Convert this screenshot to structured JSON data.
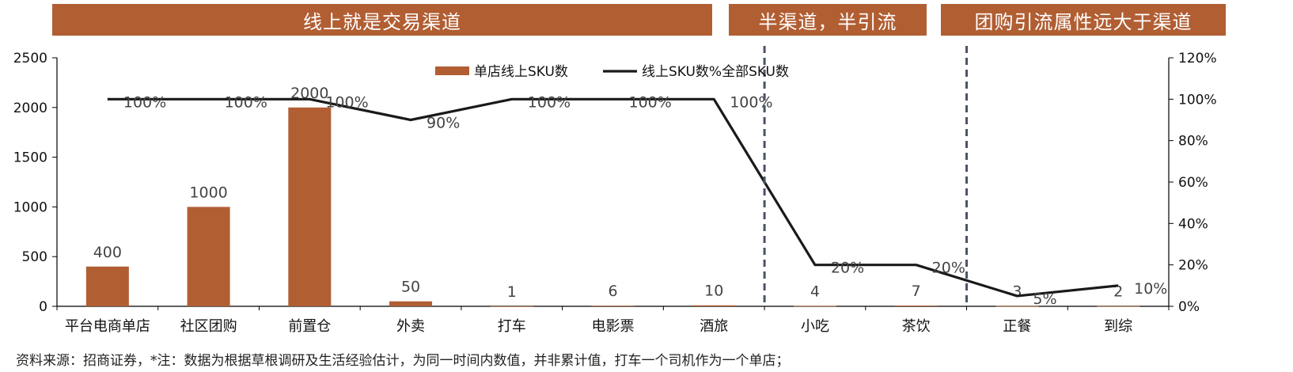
{
  "banners": [
    {
      "text": "线上就是交易渠道"
    },
    {
      "text": "半渠道，半引流"
    },
    {
      "text": "团购引流属性远大于渠道"
    }
  ],
  "footnote": "资料来源：招商证券，*注：数据为根据草根调研及生活经验估计，为同一时间内数值，并非累计值，打车一个司机作为一个单店；",
  "colors": {
    "bar": "#B15E33",
    "line": "#1a1a1a",
    "banner": "#B15E33",
    "divider": "#4a5366"
  },
  "chart_data": {
    "type": "bar",
    "categories": [
      "平台电商单店",
      "社区团购",
      "前置仓",
      "外卖",
      "打车",
      "电影票",
      "酒旅",
      "小吃",
      "茶饮",
      "正餐",
      "到综"
    ],
    "series": [
      {
        "name": "单店线上SKU数",
        "type": "bar",
        "axis": "left",
        "values": [
          400,
          1000,
          2000,
          50,
          1,
          6,
          10,
          4,
          7,
          3,
          2
        ],
        "labels": [
          "400",
          "1000",
          "2000",
          "50",
          "1",
          "6",
          "10",
          "4",
          "7",
          "3",
          "2"
        ]
      },
      {
        "name": "线上SKU数%全部SKU数",
        "type": "line",
        "axis": "right",
        "values": [
          100,
          100,
          100,
          90,
          100,
          100,
          100,
          20,
          20,
          5,
          10
        ],
        "labels": [
          "100%",
          "100%",
          "100%",
          "90%",
          "100%",
          "100%",
          "100%",
          "20%",
          "20%",
          "5%",
          "10%"
        ]
      }
    ],
    "ylim_left": [
      0,
      2500
    ],
    "yticks_left": [
      "0",
      "500",
      "1000",
      "1500",
      "2000",
      "2500"
    ],
    "ylim_right": [
      0,
      120
    ],
    "yticks_right": [
      "0%",
      "20%",
      "40%",
      "60%",
      "80%",
      "100%",
      "120%"
    ],
    "legend_position": "top-center",
    "grid": false,
    "dividers_after_category": [
      "酒旅",
      "茶饮"
    ]
  }
}
